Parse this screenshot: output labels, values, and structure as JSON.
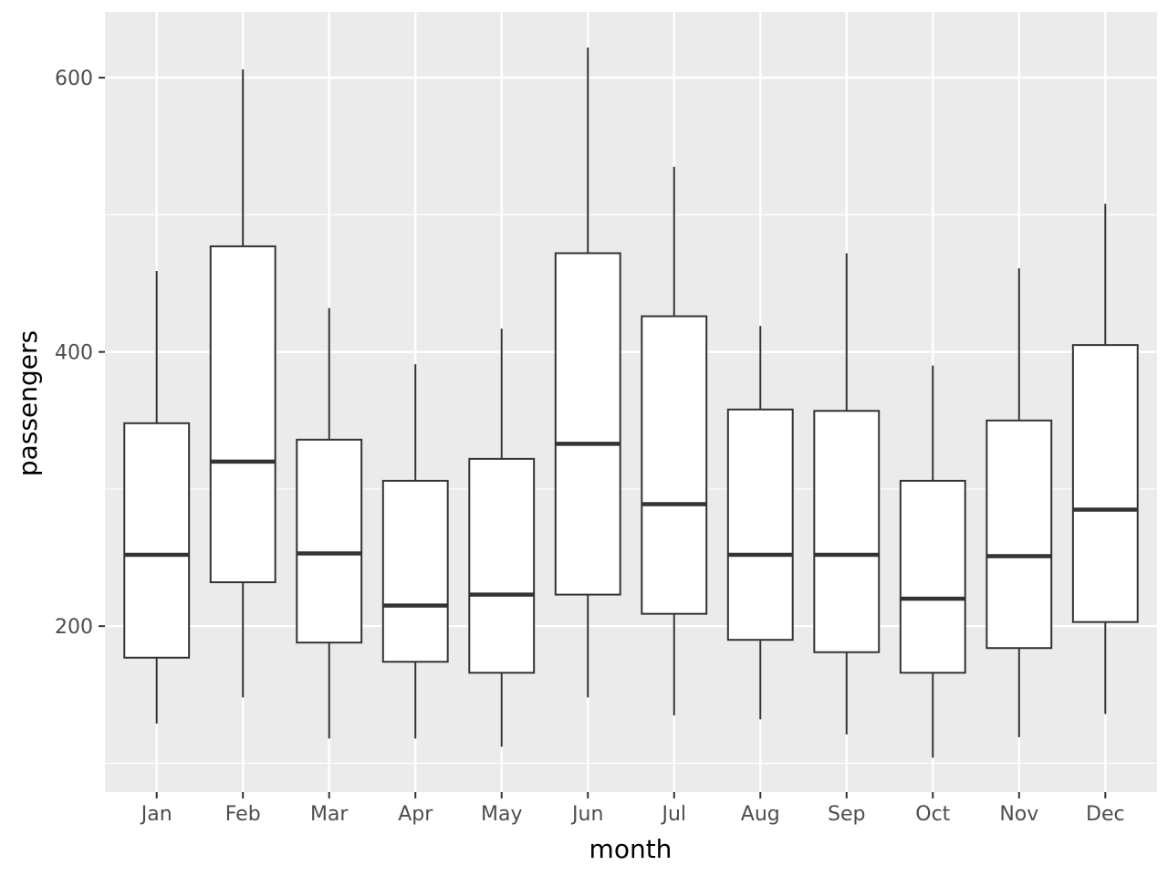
{
  "chart_data": {
    "type": "boxplot",
    "xlabel": "month",
    "ylabel": "passengers",
    "ylim": [
      79,
      648
    ],
    "yticks": [
      200,
      400,
      600
    ],
    "y_minor_gridlines": [
      100,
      300,
      500
    ],
    "categories": [
      "Jan",
      "Feb",
      "Mar",
      "Apr",
      "May",
      "Jun",
      "Jul",
      "Aug",
      "Sep",
      "Oct",
      "Nov",
      "Dec"
    ],
    "boxes": [
      {
        "min": 129,
        "q1": 177,
        "median": 252,
        "q3": 348,
        "max": 459
      },
      {
        "min": 148,
        "q1": 232,
        "median": 320,
        "q3": 477,
        "max": 606
      },
      {
        "min": 118,
        "q1": 188,
        "median": 253,
        "q3": 336,
        "max": 432
      },
      {
        "min": 118,
        "q1": 174,
        "median": 215,
        "q3": 306,
        "max": 391
      },
      {
        "min": 112,
        "q1": 166,
        "median": 223,
        "q3": 322,
        "max": 417
      },
      {
        "min": 148,
        "q1": 223,
        "median": 333,
        "q3": 472,
        "max": 622
      },
      {
        "min": 135,
        "q1": 209,
        "median": 289,
        "q3": 426,
        "max": 535
      },
      {
        "min": 132,
        "q1": 190,
        "median": 252,
        "q3": 358,
        "max": 419
      },
      {
        "min": 121,
        "q1": 181,
        "median": 252,
        "q3": 357,
        "max": 472
      },
      {
        "min": 104,
        "q1": 166,
        "median": 220,
        "q3": 306,
        "max": 390
      },
      {
        "min": 119,
        "q1": 184,
        "median": 251,
        "q3": 350,
        "max": 461
      },
      {
        "min": 136,
        "q1": 203,
        "median": 285,
        "q3": 405,
        "max": 508
      }
    ],
    "colors": {
      "panel_background": "#ebebeb",
      "gridline": "#ffffff",
      "box_fill": "#ffffff",
      "box_outline": "#333333",
      "tick_text": "#4d4d4d"
    },
    "grid": true,
    "legend": "none"
  }
}
